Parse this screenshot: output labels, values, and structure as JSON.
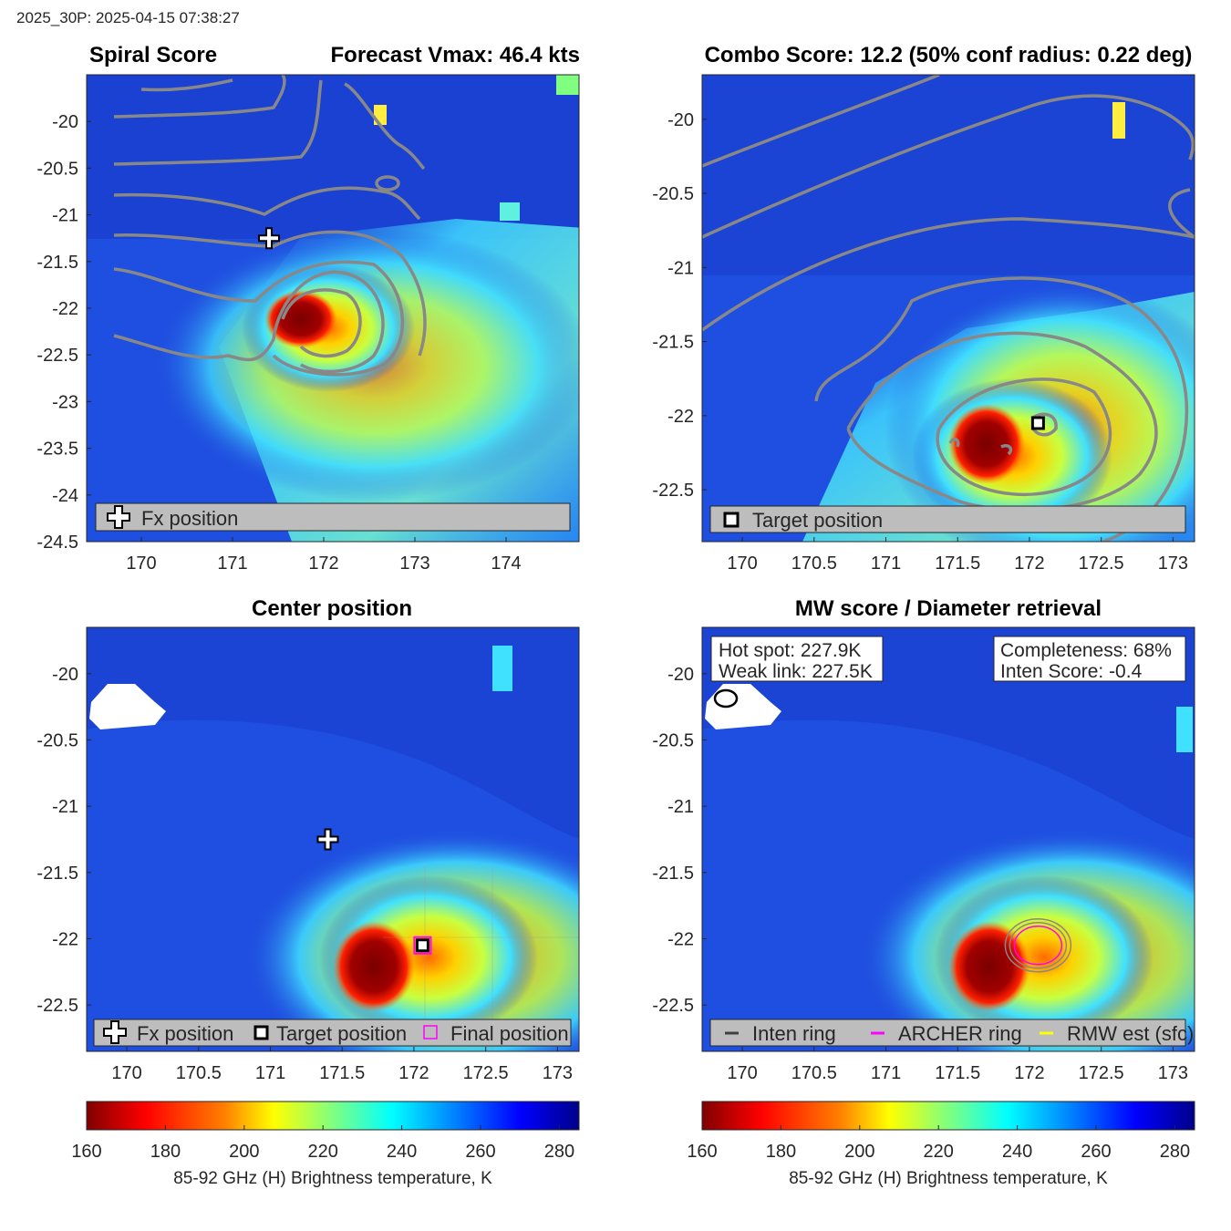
{
  "header": {
    "timestamp": "2025_30P: 2025-04-15 07:38:27"
  },
  "colors": {
    "background_cold": "#1f4fe0",
    "warm_band": "#4ad6ff",
    "core": "#8b0000",
    "contour": "#888888",
    "legend_bg": "#bdbdbd",
    "archer_ring": "#ff00ff",
    "rmw_est": "#ffff00",
    "inten_ring": "#404040"
  },
  "panels": {
    "tl": {
      "title_left": "Spiral Score",
      "title_right": "Forecast Vmax: 46.4 kts",
      "legend": [
        "Fx position"
      ]
    },
    "tr": {
      "title": "Combo Score: 12.2  (50% conf radius: 0.22 deg)",
      "legend": [
        "Target position"
      ]
    },
    "bl": {
      "title": "Center position",
      "legend": [
        "Fx position",
        "Target position",
        "Final position"
      ]
    },
    "br": {
      "title": "MW score / Diameter retrieval",
      "box_left": [
        "Hot spot: 227.9K",
        "Weak link: 227.5K"
      ],
      "box_right": [
        "Completeness: 68%",
        "Inten Score: -0.4"
      ],
      "legend": [
        "Inten ring",
        "ARCHER ring",
        "RMW est (sfc)"
      ]
    }
  },
  "chart_data": [
    {
      "type": "heatmap",
      "panel": "tl",
      "title": "Spiral Score",
      "subtitle": "Forecast Vmax: 46.4 kts",
      "xlim": [
        169.4,
        174.8
      ],
      "ylim": [
        -24.5,
        -19.5
      ],
      "xticks": [
        170,
        171,
        172,
        173,
        174
      ],
      "yticks": [
        -20,
        -20.5,
        -21,
        -21.5,
        -22,
        -22.5,
        -23,
        -23.5,
        -24,
        -24.5
      ],
      "markers": {
        "fx_position": [
          171.4,
          -21.25
        ]
      },
      "core_center": [
        171.7,
        -22.2
      ]
    },
    {
      "type": "heatmap",
      "panel": "tr",
      "title": "Combo Score: 12.2  (50% conf radius: 0.22 deg)",
      "xlim": [
        169.72,
        173.15
      ],
      "ylim": [
        -22.85,
        -19.7
      ],
      "xticks": [
        170,
        170.5,
        171,
        171.5,
        172,
        172.5,
        173
      ],
      "yticks": [
        -20,
        -20.5,
        -21,
        -21.5,
        -22,
        -22.5
      ],
      "markers": {
        "target_position": [
          172.06,
          -22.05
        ]
      },
      "core_center": [
        171.75,
        -22.2
      ]
    },
    {
      "type": "heatmap",
      "panel": "bl",
      "title": "Center position",
      "xlim": [
        169.72,
        173.15
      ],
      "ylim": [
        -22.85,
        -19.65
      ],
      "xticks": [
        170,
        170.5,
        171,
        171.5,
        172,
        172.5,
        173
      ],
      "yticks": [
        -20,
        -20.5,
        -21,
        -21.5,
        -22,
        -22.5
      ],
      "markers": {
        "fx_position": [
          171.4,
          -21.25
        ],
        "target_position": [
          172.06,
          -22.05
        ],
        "final_position": [
          172.06,
          -22.05
        ]
      },
      "core_center": [
        171.6,
        -22.15
      ]
    },
    {
      "type": "heatmap",
      "panel": "br",
      "title": "MW score / Diameter retrieval",
      "xlim": [
        169.72,
        173.15
      ],
      "ylim": [
        -22.85,
        -19.65
      ],
      "xticks": [
        170,
        170.5,
        171,
        171.5,
        172,
        172.5,
        173
      ],
      "yticks": [
        -20,
        -20.5,
        -21,
        -21.5,
        -22,
        -22.5
      ],
      "rings_center": [
        172.06,
        -22.05
      ],
      "core_center": [
        171.6,
        -22.15
      ]
    }
  ],
  "colorbar": {
    "ticks": [
      160,
      180,
      200,
      220,
      240,
      260,
      280
    ],
    "range": [
      160,
      285
    ],
    "label": "85-92 GHz (H) Brightness temperature, K",
    "stops": [
      "#800000",
      "#ff0000",
      "#ff8000",
      "#ffff00",
      "#80ff80",
      "#00ffff",
      "#0080ff",
      "#0000ff",
      "#00008a"
    ]
  }
}
